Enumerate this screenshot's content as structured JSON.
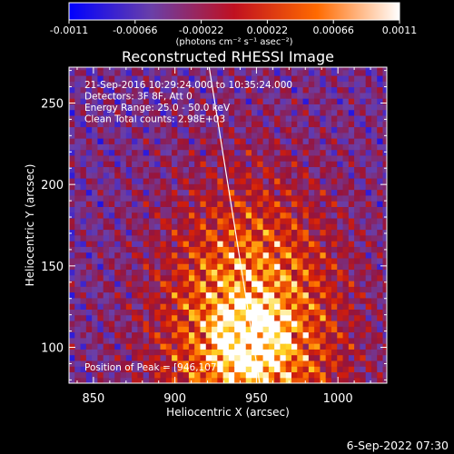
{
  "chart_data": {
    "type": "heatmap",
    "title": "Reconstructed RHESSI Image",
    "xlabel": "Heliocentric X (arcsec)",
    "ylabel": "Heliocentric Y (arcsec)",
    "xlim": [
      835,
      1030
    ],
    "ylim": [
      78,
      272
    ],
    "x_ticks": [
      850,
      900,
      950,
      1000
    ],
    "y_ticks": [
      100,
      150,
      200,
      250
    ],
    "colorbar": {
      "range": [
        -0.0011,
        0.0011
      ],
      "ticks": [
        -0.0011,
        -0.00066,
        -0.00022,
        0.00022,
        0.00066,
        0.0011
      ],
      "tick_labels": [
        "-0.0011",
        "-0.00066",
        "-0.00022",
        "0.00022",
        "0.00066",
        "0.0011"
      ],
      "units_label": "(photons cm⁻² s⁻¹ asec⁻²)",
      "colors": [
        "#0000ff",
        "#6a3fa8",
        "#c01020",
        "#ff6a00",
        "#ffffff"
      ]
    },
    "annotations": [
      "21-Sep-2016 10:29:24.000 to 10:35:24.000",
      "Detectors: 3F 8F, Att 0",
      "Energy Range: 25.0 - 50.0 keV",
      "Clean     Total counts: 2.98E+03"
    ],
    "peak_label": "Position of Peak = [946,107]",
    "peak_position": [
      946,
      107
    ],
    "limb_line": {
      "from": [
        921,
        272
      ],
      "to": [
        952,
        78
      ],
      "color": "#ffffff"
    }
  },
  "footer": {
    "timestamp": "6-Sep-2022 07:30"
  }
}
